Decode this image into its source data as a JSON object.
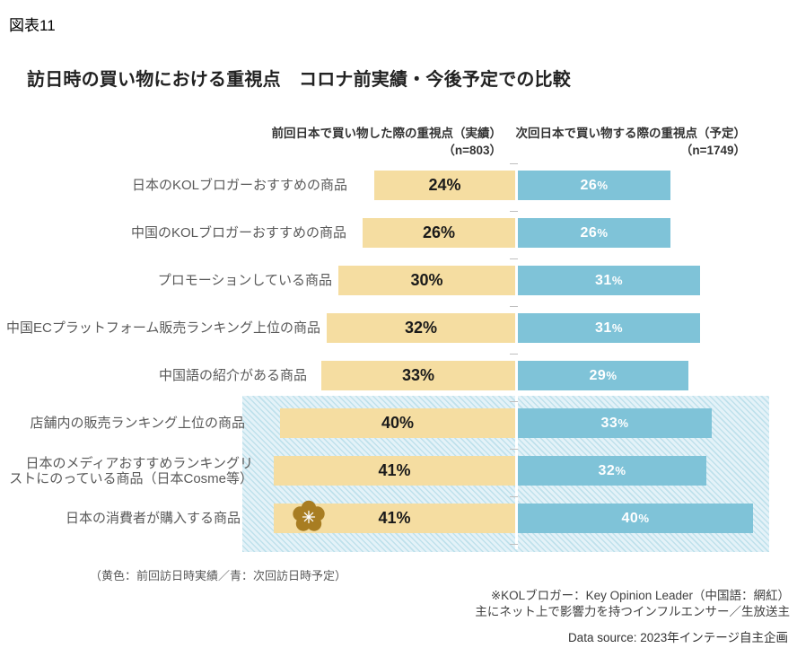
{
  "figure_label": "図表11",
  "title": "訪日時の買い物における重視点　コロナ前実績・今後予定での比較",
  "column_headers": {
    "actual": {
      "line1": "前回日本で買い物した際の重視点（実績）",
      "n": "（n=803）"
    },
    "planned": {
      "line1": "次回日本で買い物する際の重視点（予定）",
      "n": "（n=1749）"
    }
  },
  "chart_data": {
    "type": "bar",
    "orientation": "horizontal-diverging",
    "categories": [
      "日本のKOLブロガーおすすめの商品",
      "中国のKOLブロガーおすすめの商品",
      "プロモーションしている商品",
      "中国ECプラットフォーム販売ランキング上位の商品",
      "中国語の紹介がある商品",
      "店舗内の販売ランキング上位の商品",
      "日本のメディアおすすめランキングリ\nストにのっている商品（日本Cosme等）",
      "日本の消費者が購入する商品"
    ],
    "series": [
      {
        "name": "前回日本で買い物した際の重視点（実績）",
        "n": 803,
        "color": "#F5DDA1",
        "values": [
          24,
          26,
          30,
          32,
          33,
          40,
          41,
          41
        ]
      },
      {
        "name": "次回日本で買い物する際の重視点（予定）",
        "n": 1749,
        "color": "#7FC3D8",
        "values": [
          26,
          26,
          31,
          31,
          29,
          33,
          32,
          40
        ]
      }
    ],
    "value_suffix": "%",
    "xlim_each_side": [
      0,
      45
    ],
    "highlighted_category_indexes": [
      5,
      6,
      7
    ],
    "marker": {
      "category_index": 7,
      "series": "actual",
      "shape": "plum-blossom-flower",
      "color": "#A87D22"
    }
  },
  "legend_note": "（黄色：前回訪日時実績／青：次回訪日時予定）",
  "footnotes": {
    "kol_line1": "※KOLブロガー：Key Opinion Leader（中国語：網紅）",
    "kol_line2": "主にネット上で影響力を持つインフルエンサー／生放送主",
    "data_source": "Data source: 2023年インテージ自主企画"
  }
}
